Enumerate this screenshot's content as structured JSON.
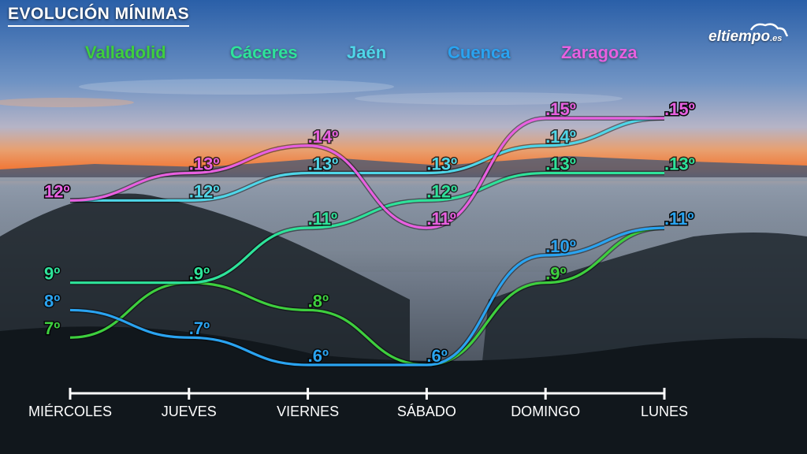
{
  "header": {
    "title": "EVOLUCIÓN MÍNIMAS"
  },
  "logo": {
    "name": "eltiempo",
    "tld": ".es"
  },
  "colors": {
    "Valladolid": "#3ecf3e",
    "Cáceres": "#2ee39a",
    "Jaén": "#4fd6e8",
    "Cuenca": "#2aa3f0",
    "Zaragoza": "#e860e0"
  },
  "chart_data": {
    "type": "line",
    "title": "EVOLUCIÓN MÍNIMAS",
    "xlabel": "",
    "ylabel": "",
    "categories": [
      "MIÉRCOLES",
      "JUEVES",
      "VIERNES",
      "SÁBADO",
      "DOMINGO",
      "LUNES"
    ],
    "value_suffix": "º",
    "ylim": [
      6,
      15
    ],
    "grid": false,
    "legend_position": "top",
    "series": [
      {
        "name": "Valladolid",
        "values": [
          7,
          9,
          8,
          6,
          9,
          11
        ]
      },
      {
        "name": "Cáceres",
        "values": [
          9,
          9,
          11,
          12,
          13,
          13
        ]
      },
      {
        "name": "Jaén",
        "values": [
          12,
          12,
          13,
          13,
          14,
          15
        ]
      },
      {
        "name": "Cuenca",
        "values": [
          8,
          7,
          6,
          6,
          10,
          11
        ]
      },
      {
        "name": "Zaragoza",
        "values": [
          12,
          13,
          14,
          11,
          15,
          15
        ]
      }
    ]
  }
}
